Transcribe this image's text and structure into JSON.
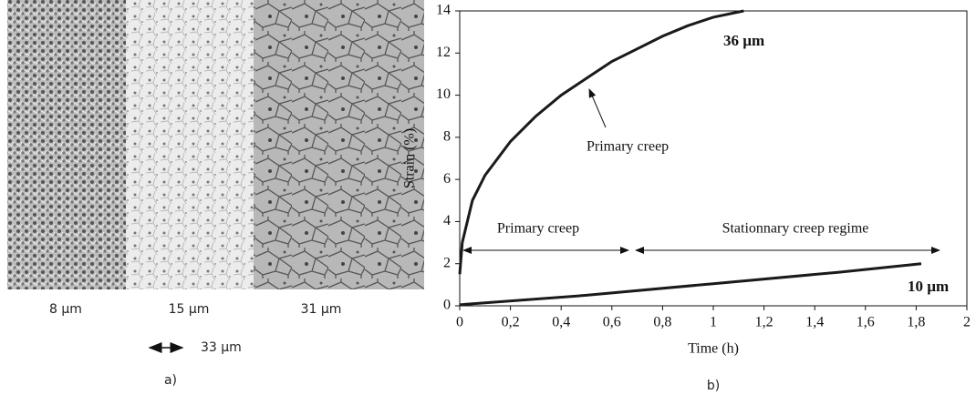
{
  "micrograph": {
    "labels": [
      "8 µm",
      "15 µm",
      "31 µm"
    ],
    "scale_bar": "33 µm",
    "caption": "a)"
  },
  "chart_data": {
    "type": "line",
    "caption": "b)",
    "xlabel": "Time (h)",
    "ylabel": "Strain (%)",
    "xlim": [
      0,
      2
    ],
    "xticks": [
      0,
      {
        "value": 0.2,
        "label": "0,2"
      },
      {
        "value": 0.4,
        "label": "0,4"
      },
      {
        "value": 0.6,
        "label": "0,6"
      },
      {
        "value": 0.8,
        "label": "0,8"
      },
      1,
      {
        "value": 1.2,
        "label": "1,2"
      },
      {
        "value": 1.4,
        "label": "1,4"
      },
      {
        "value": 1.6,
        "label": "1,6"
      },
      {
        "value": 1.8,
        "label": "1,8"
      },
      2
    ],
    "ylim": [
      0,
      14
    ],
    "yticks": [
      0,
      2,
      4,
      6,
      8,
      10,
      12,
      14
    ],
    "series": [
      {
        "name": "36 µm",
        "color": "#1a1a1a",
        "x": [
          0,
          0.01,
          0.05,
          0.1,
          0.2,
          0.3,
          0.4,
          0.5,
          0.6,
          0.7,
          0.8,
          0.9,
          1.0,
          1.12
        ],
        "values": [
          1.5,
          3,
          5,
          6.2,
          7.8,
          9,
          10,
          10.8,
          11.6,
          12.2,
          12.8,
          13.3,
          13.7,
          14
        ]
      },
      {
        "name": "10 µm",
        "color": "#1a1a1a",
        "x": [
          0,
          0.5,
          1.0,
          1.5,
          1.82
        ],
        "values": [
          0.05,
          0.5,
          1.05,
          1.6,
          2
        ]
      }
    ],
    "annotations": [
      "Primary creep",
      "Primary creep",
      "Stationnary creep regime"
    ]
  }
}
